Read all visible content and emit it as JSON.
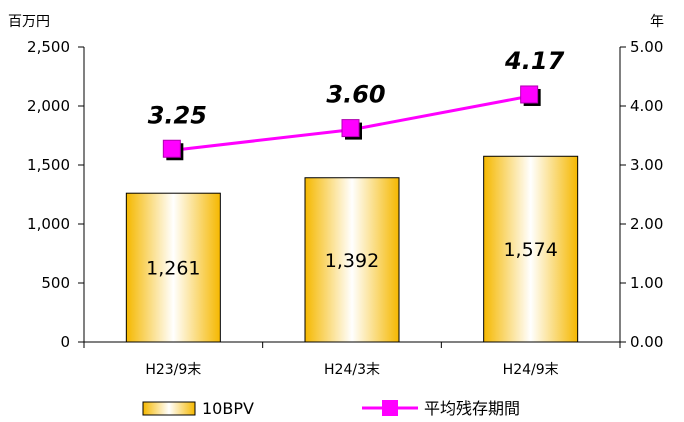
{
  "chart_data": {
    "type": "bar+line",
    "categories": [
      "H23/9末",
      "H24/3末",
      "H24/9末"
    ],
    "series": [
      {
        "name": "10BPV",
        "type": "bar",
        "axis": "left",
        "values": [
          1261,
          1392,
          1574
        ],
        "labels": [
          "1,261",
          "1,392",
          "1,574"
        ]
      },
      {
        "name": "平均残存期間",
        "type": "line",
        "axis": "right",
        "values": [
          3.25,
          3.6,
          4.17
        ],
        "labels": [
          "3.25",
          "3.60",
          "4.17"
        ]
      }
    ],
    "left_axis": {
      "unit": "百万円",
      "ylim": [
        0,
        2500
      ],
      "ticks": [
        0,
        500,
        1000,
        1500,
        2000,
        2500
      ],
      "tick_labels": [
        "0",
        "500",
        "1,000",
        "1,500",
        "2,000",
        "2,500"
      ]
    },
    "right_axis": {
      "unit": "年",
      "ylim": [
        0,
        5
      ],
      "ticks": [
        0,
        1,
        2,
        3,
        4,
        5
      ],
      "tick_labels": [
        "0.00",
        "1.00",
        "2.00",
        "3.00",
        "4.00",
        "5.00"
      ]
    },
    "legend": {
      "placement": "bottom"
    },
    "grid": false,
    "colors": {
      "bar_fill_edge": "#f5b800",
      "bar_fill_center": "#ffffff",
      "line": "#ff00ff",
      "marker": "#ff00ff",
      "marker_shadow": "#000000"
    }
  }
}
